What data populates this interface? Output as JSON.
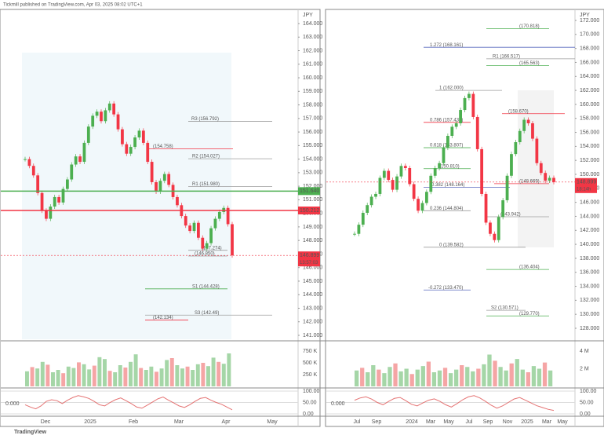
{
  "header": "Tickmill published on TradingView.com, Apr 03, 2025 08:02 UTC+1",
  "footer": "TradingView",
  "panels": [
    {
      "currency": "JPY",
      "price_ticks": [
        {
          "value": 164,
          "label": "164.000"
        },
        {
          "value": 163,
          "label": "163.000"
        },
        {
          "value": 162,
          "label": "162.000"
        },
        {
          "value": 161,
          "label": "161.000"
        },
        {
          "value": 160,
          "label": "160.000"
        },
        {
          "value": 159,
          "label": "159.000"
        },
        {
          "value": 158,
          "label": "158.000"
        },
        {
          "value": 157,
          "label": "157.000"
        },
        {
          "value": 156,
          "label": "156.000"
        },
        {
          "value": 155,
          "label": "155.000"
        },
        {
          "value": 154,
          "label": "154.000"
        },
        {
          "value": 153,
          "label": "153.000"
        },
        {
          "value": 152,
          "label": "152.000"
        },
        {
          "value": 151,
          "label": "151.000"
        },
        {
          "value": 150,
          "label": "150.000"
        },
        {
          "value": 149,
          "label": "149.000"
        },
        {
          "value": 148,
          "label": "148.000"
        },
        {
          "value": 147,
          "label": "147.000"
        },
        {
          "value": 146,
          "label": "146.000"
        },
        {
          "value": 145,
          "label": "145.000"
        },
        {
          "value": 144,
          "label": "144.000"
        },
        {
          "value": 143,
          "label": "143.000"
        },
        {
          "value": 142,
          "label": "142.000"
        },
        {
          "value": 141,
          "label": "141.000"
        }
      ],
      "date_labels": [
        "Dec",
        "2025",
        "Feb",
        "Mar",
        "Apr",
        "May"
      ],
      "levels": [
        {
          "label": "R3 (156.792)",
          "value": 156.792,
          "color": "#9e9e9e"
        },
        {
          "label": "(154.758)",
          "value": 154.758,
          "color": "#f23645"
        },
        {
          "label": "R2 (154.027)",
          "value": 154.027,
          "color": "#9e9e9e"
        },
        {
          "label": "R1 (151.980)",
          "value": 151.98,
          "color": "#9e9e9e"
        },
        {
          "label": "(147.274)",
          "value": 147.274,
          "color": "#9e9e9e"
        },
        {
          "label": "(146.850)",
          "value": 146.85,
          "color": "#9e9e9e"
        },
        {
          "label": "S1 (144.428)",
          "value": 144.428,
          "color": "#4caf50"
        },
        {
          "label": "S3 (142.49)",
          "value": 142.49,
          "color": "#9e9e9e"
        },
        {
          "label": "(142.134)",
          "value": 142.134,
          "color": "#f23645"
        }
      ],
      "price_tags": [
        {
          "label": "151.640",
          "value": 151.64,
          "color": "#4caf50"
        },
        {
          "label": "150.212",
          "value": 150.212,
          "color": "#f23645"
        },
        {
          "label": "146.899",
          "value": 146.899,
          "color": "#f23645",
          "sub": "13:57:03"
        }
      ],
      "closes": [
        154,
        153.5,
        152.8,
        151.5,
        150.2,
        149.6,
        150.5,
        151.2,
        150.8,
        151.8,
        152.5,
        153.6,
        154.2,
        153.8,
        155.2,
        156.4,
        157.2,
        157.5,
        156.8,
        157.6,
        158.1,
        157.3,
        156.2,
        155.1,
        154.4,
        154.9,
        155.6,
        156.1,
        155.2,
        153.8,
        152.3,
        151.6,
        152.4,
        152.9,
        152.1,
        151.2,
        150.6,
        149.8,
        149.1,
        148.7,
        149.3,
        148.2,
        147.4,
        147.8,
        148.9,
        149.6,
        150.1,
        150.4,
        149.2,
        146.9
      ],
      "volume_ticks": [
        {
          "value": 750,
          "label": "750 K"
        },
        {
          "value": 500,
          "label": "500 K"
        },
        {
          "value": 250,
          "label": "250 K"
        }
      ],
      "volume": [
        320,
        410,
        380,
        520,
        460,
        300,
        350,
        280,
        420,
        390,
        510,
        470,
        360,
        440,
        620,
        580,
        330,
        300,
        450,
        400,
        520,
        680,
        390,
        350,
        420,
        310,
        380,
        560,
        600,
        450,
        380,
        420,
        350,
        470,
        500,
        430,
        610,
        520,
        480,
        700
      ],
      "osc_ticks": [
        {
          "value": 100,
          "label": "100.00"
        },
        {
          "value": 50,
          "label": "50.00"
        },
        {
          "value": 0,
          "label": "0.00"
        }
      ],
      "osc_left": "0.000",
      "osc": [
        40,
        30,
        22,
        35,
        55,
        62,
        58,
        45,
        60,
        72,
        80,
        75,
        68,
        55,
        40,
        35,
        50,
        62,
        70,
        58,
        45,
        30,
        25,
        38,
        52,
        66,
        74,
        60,
        48,
        35,
        28,
        40,
        55,
        68,
        72,
        60,
        50,
        42,
        30,
        18
      ]
    },
    {
      "currency": "JPY",
      "price_ticks": [
        {
          "value": 172,
          "label": "172.000"
        },
        {
          "value": 170,
          "label": "170.000"
        },
        {
          "value": 168,
          "label": "168.000"
        },
        {
          "value": 166,
          "label": "166.000"
        },
        {
          "value": 164,
          "label": "164.000"
        },
        {
          "value": 162,
          "label": "162.000"
        },
        {
          "value": 160,
          "label": "160.000"
        },
        {
          "value": 158,
          "label": "158.000"
        },
        {
          "value": 156,
          "label": "156.000"
        },
        {
          "value": 154,
          "label": "154.000"
        },
        {
          "value": 152,
          "label": "152.000"
        },
        {
          "value": 150,
          "label": "150.000"
        },
        {
          "value": 148,
          "label": "148.000"
        },
        {
          "value": 146,
          "label": "146.000"
        },
        {
          "value": 144,
          "label": "144.000"
        },
        {
          "value": 142,
          "label": "142.000"
        },
        {
          "value": 140,
          "label": "140.000"
        },
        {
          "value": 138,
          "label": "138.000"
        },
        {
          "value": 136,
          "label": "136.000"
        },
        {
          "value": 134,
          "label": "134.000"
        },
        {
          "value": 132,
          "label": "132.000"
        },
        {
          "value": 130,
          "label": "130.000"
        },
        {
          "value": 128,
          "label": "128.000"
        }
      ],
      "date_labels": [
        "Jul",
        "Sep",
        "2024",
        "Mar",
        "May",
        "Jul",
        "Sep",
        "Nov",
        "2025",
        "Mar",
        "May"
      ],
      "levels": [
        {
          "label": "(170.818)",
          "value": 170.818,
          "color": "#4caf50"
        },
        {
          "label": "1.272 (168.161)",
          "value": 168.161,
          "color": "#5b6abf"
        },
        {
          "label": "R1 (166.517)",
          "value": 166.517,
          "color": "#9e9e9e"
        },
        {
          "label": "(165.563)",
          "value": 165.563,
          "color": "#4caf50"
        },
        {
          "label": "1 (162.000)",
          "value": 162,
          "color": "#9e9e9e"
        },
        {
          "label": "(158.670)",
          "value": 158.67,
          "color": "#f23645"
        },
        {
          "label": "0.786 (157.432)",
          "value": 157.432,
          "color": "#f23645"
        },
        {
          "label": "0.618 (153.807)",
          "value": 153.807,
          "color": "#4caf50"
        },
        {
          "label": "(150.810)",
          "value": 150.81,
          "color": "#4caf50"
        },
        {
          "label": "0.382 (148.164)",
          "value": 148.164,
          "color": "#5b6abf"
        },
        {
          "label": "(148.669)",
          "value": 148.669,
          "color": "#f23645"
        },
        {
          "label": "0.236 (144.804)",
          "value": 144.804,
          "color": "#9e9e9e"
        },
        {
          "label": "(143.942)",
          "value": 143.942,
          "color": "#9e9e9e"
        },
        {
          "label": "0 (139.582)",
          "value": 139.582,
          "color": "#9e9e9e"
        },
        {
          "label": "(136.404)",
          "value": 136.404,
          "color": "#4caf50"
        },
        {
          "label": "-0.272 (133.470)",
          "value": 133.47,
          "color": "#5b6abf"
        },
        {
          "label": "S2 (130.571)",
          "value": 130.571,
          "color": "#9e9e9e"
        },
        {
          "label": "(129.770)",
          "value": 129.77,
          "color": "#4caf50"
        }
      ],
      "price_tags": [
        {
          "label": "148.899",
          "value": 148.899,
          "color": "#f23645",
          "sub": "18:14h"
        }
      ],
      "closes": [
        141.5,
        142.8,
        144.5,
        145.6,
        146.8,
        147.2,
        149.5,
        150.5,
        149.2,
        147.8,
        149.7,
        151.2,
        150.9,
        148.6,
        146.5,
        144.8,
        145.9,
        147.5,
        149.8,
        150.9,
        151.6,
        153.8,
        155.5,
        156.8,
        157.3,
        159.2,
        160.9,
        161.5,
        158.2,
        153.6,
        147.2,
        143.1,
        141.5,
        140.6,
        143.9,
        146.3,
        149.8,
        152.9,
        154.6,
        156.2,
        157.8,
        157.3,
        155.1,
        151.6,
        150.2,
        149.1,
        149.5,
        148.9
      ],
      "volume_ticks": [
        {
          "value": 4,
          "label": "4 M"
        },
        {
          "value": 2,
          "label": "2 M"
        }
      ],
      "volume": [
        1.8,
        2.1,
        1.6,
        2.4,
        1.9,
        1.5,
        2.2,
        2.6,
        1.7,
        2,
        1.4,
        1.9,
        2.3,
        2.8,
        1.6,
        1.8,
        2.1,
        1.5,
        1.9,
        2.4,
        2.2,
        1.7,
        2,
        2.5,
        3.6,
        2.9,
        2.2,
        1.8,
        2.6,
        3.1,
        1.9,
        1.6,
        2.3,
        2,
        2.7,
        1.8
      ],
      "osc_ticks": [
        {
          "value": 100,
          "label": "100.00"
        },
        {
          "value": 50,
          "label": "50.00"
        },
        {
          "value": 0,
          "label": "0.00"
        }
      ],
      "osc_left": "0.000",
      "osc": [
        60,
        70,
        75,
        65,
        50,
        40,
        55,
        68,
        72,
        58,
        42,
        35,
        48,
        60,
        66,
        55,
        40,
        30,
        45,
        62,
        75,
        80,
        70,
        55,
        38,
        25,
        35,
        50,
        65,
        72,
        60,
        48,
        36,
        28,
        20,
        15
      ]
    }
  ]
}
